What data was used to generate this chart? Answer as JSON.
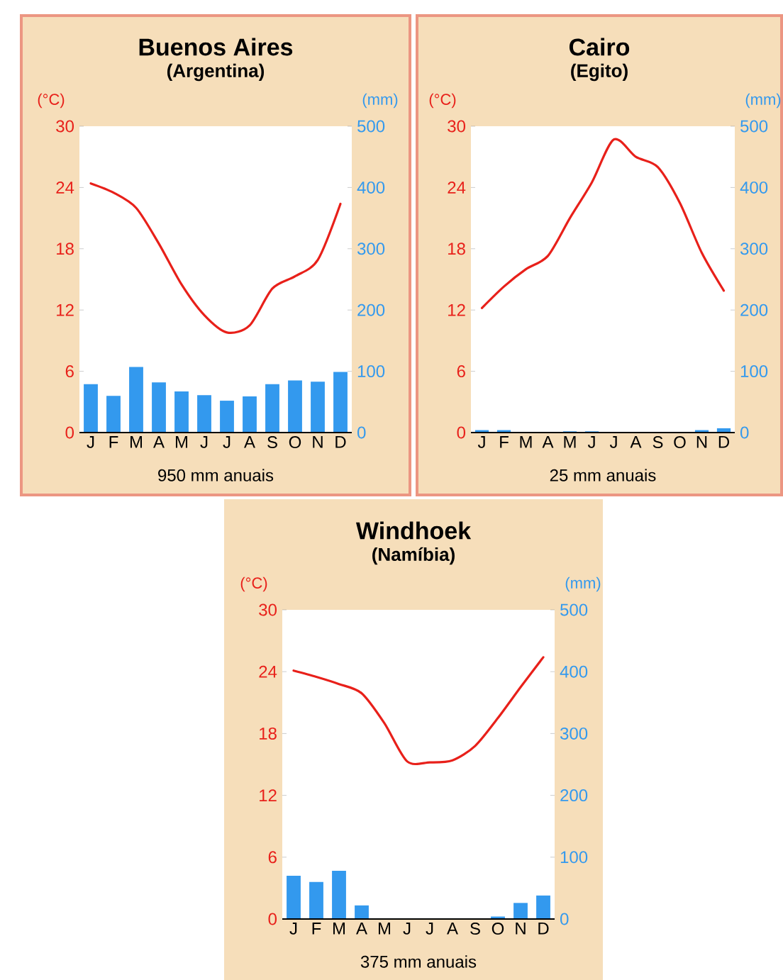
{
  "chart_data": [
    {
      "type": "bar",
      "title": "Buenos Aires",
      "subtitle": "(Argentina)",
      "ylabel": "(°C)",
      "y2label": "(mm)",
      "categories": [
        "J",
        "F",
        "M",
        "A",
        "M",
        "J",
        "J",
        "A",
        "S",
        "O",
        "N",
        "D"
      ],
      "series": [
        {
          "axis": "y2",
          "color": "#3399ee",
          "values": [
            79,
            60,
            107,
            82,
            67,
            61,
            52,
            59,
            79,
            85,
            83,
            99
          ]
        },
        {
          "type": "line",
          "color": "#e8201a",
          "values": [
            24.4,
            23.5,
            22.0,
            18.5,
            14.5,
            11.5,
            9.8,
            10.5,
            14.1,
            15.3,
            16.9,
            22.4
          ]
        }
      ],
      "ylim": [
        0,
        30
      ],
      "yticks": [
        0,
        6,
        12,
        18,
        24,
        30
      ],
      "y2lim": [
        0,
        500
      ],
      "y2ticks": [
        0,
        100,
        200,
        300,
        400,
        500
      ],
      "annotations": [
        "950 mm anuais"
      ]
    },
    {
      "type": "bar",
      "title": "Cairo",
      "subtitle": "(Egito)",
      "ylabel": "(°C)",
      "y2label": "(mm)",
      "categories": [
        "J",
        "F",
        "M",
        "A",
        "M",
        "J",
        "J",
        "A",
        "S",
        "O",
        "N",
        "D"
      ],
      "series": [
        {
          "axis": "y2",
          "color": "#3399ee",
          "values": [
            4,
            4,
            0,
            0,
            2,
            2,
            0,
            0,
            0,
            0,
            4,
            7
          ]
        },
        {
          "type": "line",
          "color": "#e8201a",
          "values": [
            12.2,
            14.3,
            16.0,
            17.3,
            21.0,
            24.5,
            28.7,
            27.0,
            26.0,
            22.5,
            17.6,
            13.9
          ]
        }
      ],
      "ylim": [
        0,
        30
      ],
      "yticks": [
        0,
        6,
        12,
        18,
        24,
        30
      ],
      "y2lim": [
        0,
        500
      ],
      "y2ticks": [
        0,
        100,
        200,
        300,
        400,
        500
      ],
      "annotations": [
        "25 mm anuais"
      ]
    },
    {
      "type": "bar",
      "title": "Windhoek",
      "subtitle": "(Namíbia)",
      "ylabel": "(°C)",
      "y2label": "(mm)",
      "categories": [
        "J",
        "F",
        "M",
        "A",
        "M",
        "J",
        "J",
        "A",
        "S",
        "O",
        "N",
        "D"
      ],
      "series": [
        {
          "axis": "y2",
          "color": "#3399ee",
          "values": [
            70,
            60,
            78,
            22,
            0,
            0,
            0,
            0,
            0,
            4,
            26,
            38
          ]
        },
        {
          "type": "line",
          "color": "#e8201a",
          "values": [
            24.1,
            23.5,
            22.8,
            21.9,
            19.0,
            15.3,
            15.2,
            15.4,
            16.8,
            19.5,
            22.5,
            25.4
          ]
        }
      ],
      "ylim": [
        0,
        30
      ],
      "yticks": [
        0,
        6,
        12,
        18,
        24,
        30
      ],
      "y2lim": [
        0,
        500
      ],
      "y2ticks": [
        0,
        100,
        200,
        300,
        400,
        500
      ],
      "annotations": [
        "375 mm anuais"
      ]
    }
  ]
}
